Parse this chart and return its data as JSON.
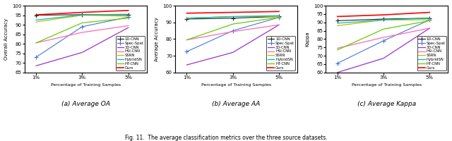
{
  "x": [
    1,
    3,
    5
  ],
  "x_labels": [
    "1%",
    "3%",
    "5%"
  ],
  "methods": [
    "1D-CNN",
    "Spec-Spat",
    "3D-CNN",
    "HSI-CNN",
    "SSRN",
    "HybridSN",
    "HT-CNN",
    "Ours"
  ],
  "colors": [
    "#222222",
    "#4477dd",
    "#9933cc",
    "#ff69b4",
    "#bbbb00",
    "#00bbbb",
    "#66cc00",
    "#ff0000"
  ],
  "oa": {
    "ylabel": "Overall Accuracy",
    "ylim": [
      65,
      100
    ],
    "yticks": [
      65,
      70,
      75,
      80,
      85,
      90,
      95,
      100
    ],
    "data": [
      [
        95.0,
        95.3,
        95.2
      ],
      [
        73.0,
        89.0,
        94.0
      ],
      [
        68.5,
        75.5,
        88.5
      ],
      [
        80.5,
        86.0,
        89.5
      ],
      [
        91.5,
        95.0,
        94.5
      ],
      [
        92.5,
        95.2,
        95.5
      ],
      [
        80.5,
        91.0,
        93.5
      ],
      [
        95.2,
        96.5,
        97.5
      ]
    ]
  },
  "aa": {
    "ylabel": "Average Accuracy",
    "ylim": [
      60,
      100
    ],
    "yticks": [
      60,
      70,
      80,
      90,
      100
    ],
    "data": [
      [
        92.0,
        92.5,
        93.5
      ],
      [
        72.5,
        85.0,
        93.0
      ],
      [
        64.5,
        72.0,
        88.5
      ],
      [
        79.5,
        84.5,
        88.5
      ],
      [
        92.5,
        93.5,
        93.5
      ],
      [
        92.5,
        93.5,
        94.0
      ],
      [
        79.5,
        89.0,
        93.0
      ],
      [
        95.5,
        96.0,
        96.5
      ]
    ]
  },
  "kappa": {
    "ylabel": "Kappa",
    "ylim": [
      60,
      100
    ],
    "yticks": [
      60,
      65,
      70,
      75,
      80,
      85,
      90,
      95,
      100
    ],
    "data": [
      [
        91.0,
        92.0,
        92.5
      ],
      [
        65.5,
        79.0,
        91.5
      ],
      [
        60.0,
        68.5,
        86.5
      ],
      [
        74.5,
        81.0,
        86.5
      ],
      [
        88.0,
        91.5,
        91.5
      ],
      [
        89.5,
        91.5,
        92.5
      ],
      [
        73.5,
        86.0,
        91.0
      ],
      [
        93.5,
        94.5,
        96.0
      ]
    ]
  },
  "caption": "Fig. 11.  The average classification metrics over the three source datasets.",
  "subplot_labels": [
    "(a) Average OA",
    "(b) Average AA",
    "(c) Average Kappa"
  ]
}
